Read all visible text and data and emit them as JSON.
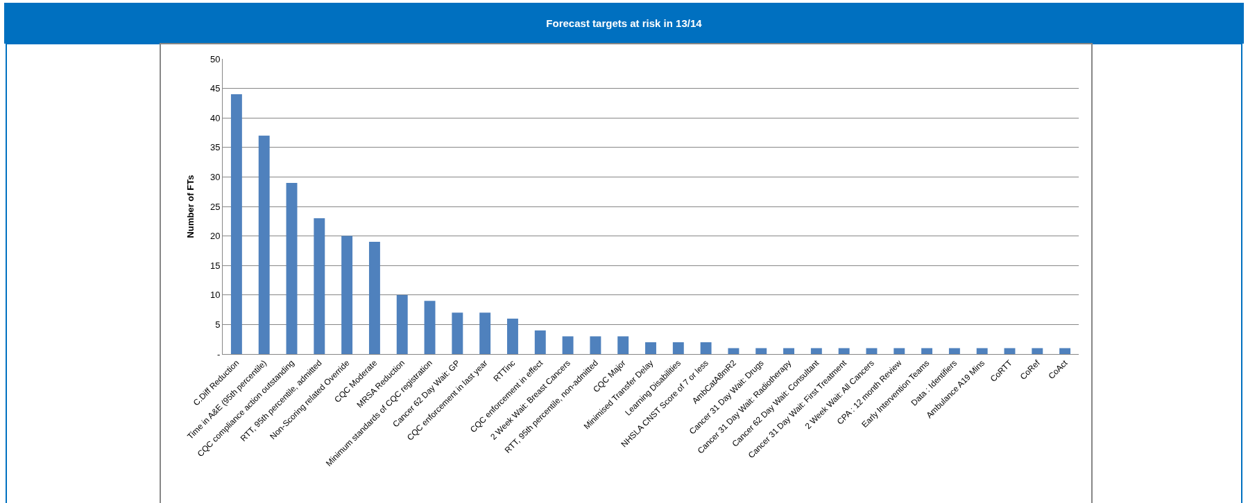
{
  "chart_data": {
    "type": "bar",
    "title": "Forecast targets at risk in 13/14",
    "ylabel": "Number of FTs",
    "categories": [
      "C.Diff Reduction",
      "Time in A&E (95th percentile)",
      "CQC compliance action outstanding",
      "RTT, 95th percentile, admitted",
      "Non-Scoring related Override",
      "CQC Moderate",
      "MRSA Reduction",
      "Minimum standards of CQC registration",
      "Cancer 62 Day Wait: GP",
      "CQC enforcement in last year",
      "RTTinc",
      "CQC enforcement in effect",
      "2 Week Wait: Breast Cancers",
      "RTT, 95th percentile, non-admitted",
      "CQC Major",
      "Minimised Transfer Delay",
      "Learning Disabilities",
      "NHSLA CNST Score of 7 or less",
      "AmbCatA8mR2",
      "Cancer 31 Day Wait: Drugs",
      "Cancer 31 Day Wait: Radiotherapy",
      "Cancer 62 Day Wait: Consultant",
      "Cancer 31 Day Wait: First Treatment",
      "2 Week Wait: All Cancers",
      "CPA : 12 month Review",
      "Early Intervention Teams",
      "Data : Identifiers",
      "Ambulance A19 Mins",
      "CoRTT",
      "CoRef",
      "CoAct"
    ],
    "values": [
      44,
      37,
      29,
      23,
      20,
      19,
      10,
      9,
      7,
      7,
      6,
      4,
      3,
      3,
      3,
      2,
      2,
      2,
      1,
      1,
      1,
      1,
      1,
      1,
      1,
      1,
      1,
      1,
      1,
      1,
      1
    ],
    "color": "#4f81bd",
    "ylim": [
      0,
      50
    ],
    "yticks": [
      {
        "value": 0,
        "label": "-"
      },
      5,
      10,
      15,
      20,
      25,
      30,
      35,
      40,
      45,
      50
    ],
    "grid": "y"
  }
}
